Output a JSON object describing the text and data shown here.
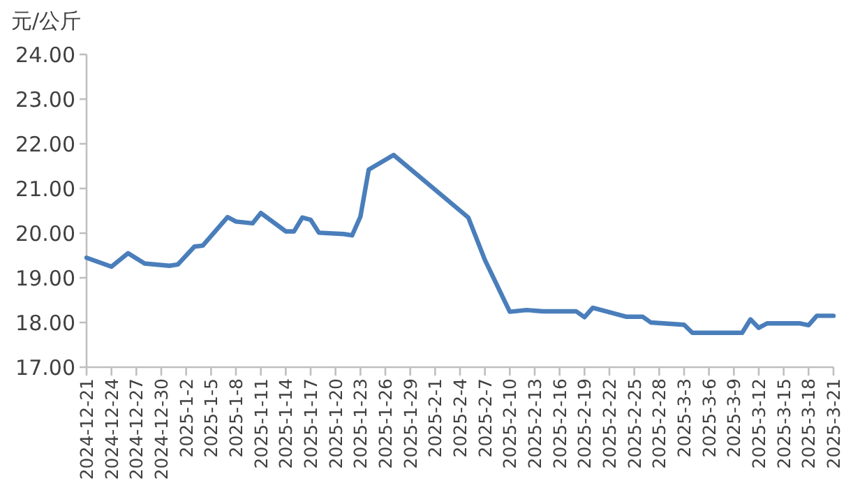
{
  "chart_data": {
    "type": "line",
    "ylabel": "元/公斤",
    "color": "#4a7ebb",
    "x": [
      "2024-12-21",
      "2024-12-24",
      "2024-12-26",
      "2024-12-28",
      "2024-12-31",
      "2025-01-01",
      "2025-01-03",
      "2025-01-04",
      "2025-01-07",
      "2025-01-08",
      "2025-01-10",
      "2025-01-11",
      "2025-01-14",
      "2025-01-15",
      "2025-01-16",
      "2025-01-17",
      "2025-01-18",
      "2025-01-21",
      "2025-01-22",
      "2025-01-23",
      "2025-01-24",
      "2025-01-27",
      "2025-02-05",
      "2025-02-07",
      "2025-02-10",
      "2025-02-12",
      "2025-02-14",
      "2025-02-18",
      "2025-02-19",
      "2025-02-20",
      "2025-02-24",
      "2025-02-26",
      "2025-02-27",
      "2025-03-03",
      "2025-03-04",
      "2025-03-10",
      "2025-03-11",
      "2025-03-12",
      "2025-03-13",
      "2025-03-17",
      "2025-03-18",
      "2025-03-19",
      "2025-03-21"
    ],
    "values": [
      19.45,
      19.25,
      19.55,
      19.32,
      19.27,
      19.3,
      19.7,
      19.72,
      20.36,
      20.26,
      20.22,
      20.45,
      20.04,
      20.04,
      20.35,
      20.3,
      20.01,
      19.98,
      19.95,
      20.37,
      21.42,
      21.75,
      20.35,
      19.4,
      18.24,
      18.28,
      18.25,
      18.25,
      18.12,
      18.33,
      18.13,
      18.13,
      18.0,
      17.95,
      17.77,
      17.77,
      18.07,
      17.88,
      17.98,
      17.98,
      17.94,
      18.15,
      18.15
    ],
    "xlim": [
      "2024-12-21",
      "2025-03-21"
    ],
    "xticks": [
      {
        "value": "2024-12-21",
        "label": "2024-12-21"
      },
      {
        "value": "2024-12-24",
        "label": "2024-12-24"
      },
      {
        "value": "2024-12-27",
        "label": "2024-12-27"
      },
      {
        "value": "2024-12-30",
        "label": "2024-12-30"
      },
      {
        "value": "2025-01-02",
        "label": "2025-1-2"
      },
      {
        "value": "2025-01-05",
        "label": "2025-1-5"
      },
      {
        "value": "2025-01-08",
        "label": "2025-1-8"
      },
      {
        "value": "2025-01-11",
        "label": "2025-1-11"
      },
      {
        "value": "2025-01-14",
        "label": "2025-1-14"
      },
      {
        "value": "2025-01-17",
        "label": "2025-1-17"
      },
      {
        "value": "2025-01-20",
        "label": "2025-1-20"
      },
      {
        "value": "2025-01-23",
        "label": "2025-1-23"
      },
      {
        "value": "2025-01-26",
        "label": "2025-1-26"
      },
      {
        "value": "2025-01-29",
        "label": "2025-1-29"
      },
      {
        "value": "2025-02-01",
        "label": "2025-2-1"
      },
      {
        "value": "2025-02-04",
        "label": "2025-2-4"
      },
      {
        "value": "2025-02-07",
        "label": "2025-2-7"
      },
      {
        "value": "2025-02-10",
        "label": "2025-2-10"
      },
      {
        "value": "2025-02-13",
        "label": "2025-2-13"
      },
      {
        "value": "2025-02-16",
        "label": "2025-2-16"
      },
      {
        "value": "2025-02-19",
        "label": "2025-2-19"
      },
      {
        "value": "2025-02-22",
        "label": "2025-2-22"
      },
      {
        "value": "2025-02-25",
        "label": "2025-2-25"
      },
      {
        "value": "2025-02-28",
        "label": "2025-2-28"
      },
      {
        "value": "2025-03-03",
        "label": "2025-3-3"
      },
      {
        "value": "2025-03-06",
        "label": "2025-3-6"
      },
      {
        "value": "2025-03-09",
        "label": "2025-3-9"
      },
      {
        "value": "2025-03-12",
        "label": "2025-3-12"
      },
      {
        "value": "2025-03-15",
        "label": "2025-3-15"
      },
      {
        "value": "2025-03-18",
        "label": "2025-3-18"
      },
      {
        "value": "2025-03-21",
        "label": "2025-3-21"
      }
    ],
    "ylim": [
      17,
      24
    ],
    "yticks": [
      {
        "value": 17,
        "label": "17.00"
      },
      {
        "value": 18,
        "label": "18.00"
      },
      {
        "value": 19,
        "label": "19.00"
      },
      {
        "value": 20,
        "label": "20.00"
      },
      {
        "value": 21,
        "label": "21.00"
      },
      {
        "value": 22,
        "label": "22.00"
      },
      {
        "value": 23,
        "label": "23.00"
      },
      {
        "value": 24,
        "label": "24.00"
      }
    ]
  }
}
